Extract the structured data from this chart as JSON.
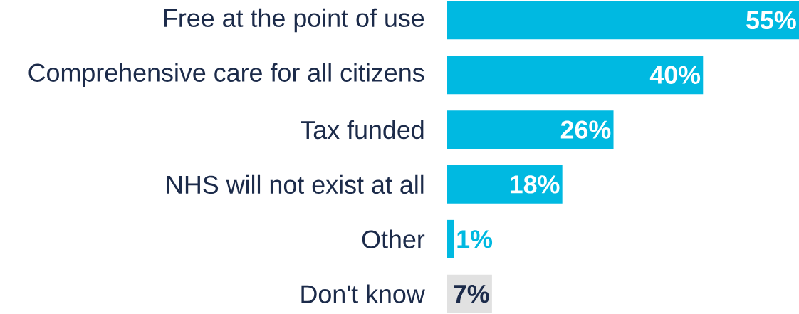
{
  "chart_data": {
    "type": "bar",
    "orientation": "horizontal",
    "categories": [
      "Free at the point of use",
      "Comprehensive care for all citizens",
      "Tax funded",
      "NHS will not exist at all",
      "Other",
      "Don't know"
    ],
    "values": [
      55,
      40,
      26,
      18,
      1,
      7
    ],
    "value_labels": [
      "55%",
      "40%",
      "26%",
      "18%",
      "1%",
      "7%"
    ],
    "colors": [
      "#00b9e1",
      "#00b9e1",
      "#00b9e1",
      "#00b9e1",
      "#00b9e1",
      "#e1e1e1"
    ]
  }
}
